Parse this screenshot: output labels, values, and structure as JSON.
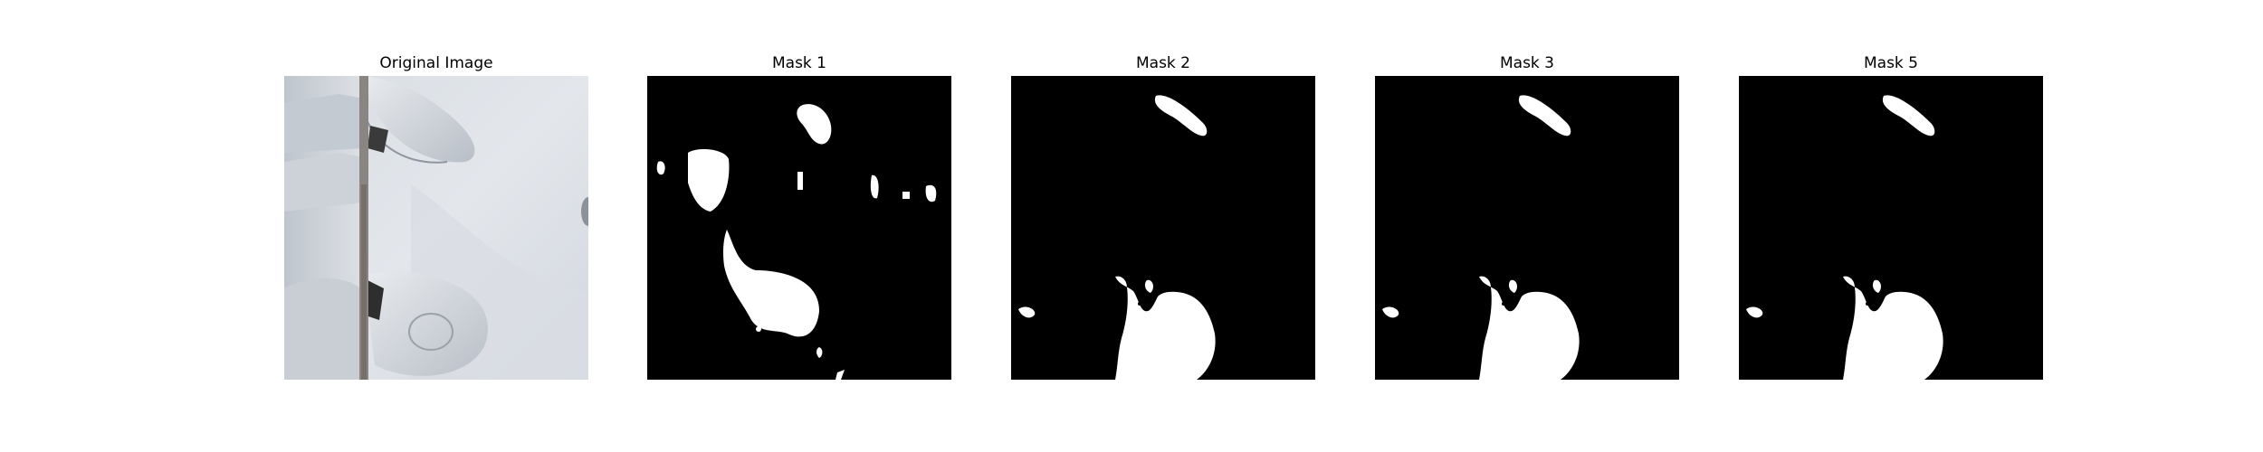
{
  "figure": {
    "panels": [
      {
        "id": "original",
        "title": "Original Image"
      },
      {
        "id": "mask1",
        "title": "Mask 1"
      },
      {
        "id": "mask2",
        "title": "Mask 2"
      },
      {
        "id": "mask3",
        "title": "Mask 3"
      },
      {
        "id": "mask5",
        "title": "Mask 5"
      }
    ],
    "colors": {
      "mask_background": "#000000",
      "mask_foreground": "#ffffff",
      "surface_light": "#e6e9ee",
      "surface_mid": "#cfd4db",
      "seam": "#8a8580"
    }
  }
}
